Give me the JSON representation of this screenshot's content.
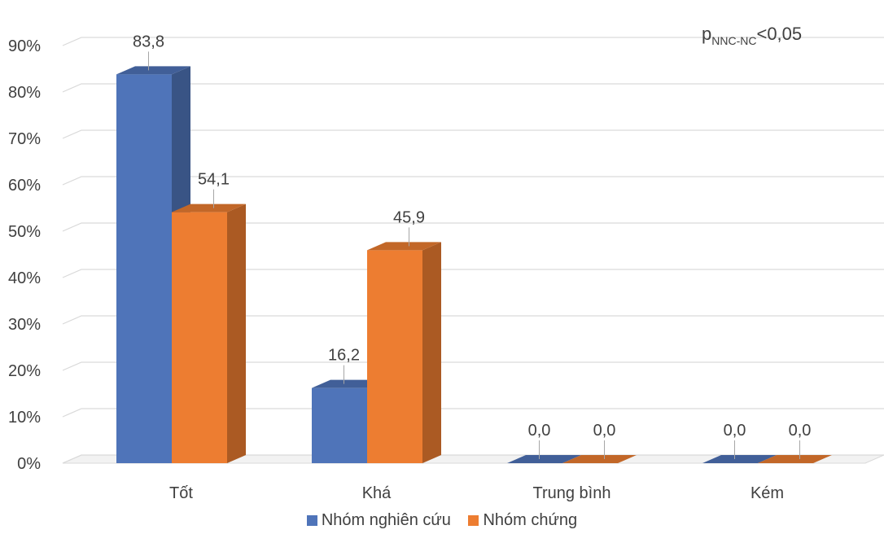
{
  "chart_data": {
    "type": "bar",
    "style": "3d-clustered-column",
    "categories": [
      "Tốt",
      "Khá",
      "Trung bình",
      "Kém"
    ],
    "series": [
      {
        "name": "Nhóm nghiên cứu",
        "values": [
          83.8,
          16.2,
          0.0,
          0.0
        ],
        "labels": [
          "83,8",
          "16,2",
          "0,0",
          "0,0"
        ],
        "color": "#4f74b9"
      },
      {
        "name": "Nhóm chứng",
        "values": [
          54.1,
          45.9,
          0.0,
          0.0
        ],
        "labels": [
          "54,1",
          "45,9",
          "0,0",
          "0,0"
        ],
        "color": "#ed7d31"
      }
    ],
    "ylim": [
      0,
      90
    ],
    "yticks": [
      "0%",
      "10%",
      "20%",
      "30%",
      "40%",
      "50%",
      "60%",
      "70%",
      "80%",
      "90%"
    ],
    "grid": true,
    "legend_position": "bottom",
    "annotation": {
      "main": "p",
      "sub": "NNC-NC",
      "rest": "<0,05"
    }
  }
}
